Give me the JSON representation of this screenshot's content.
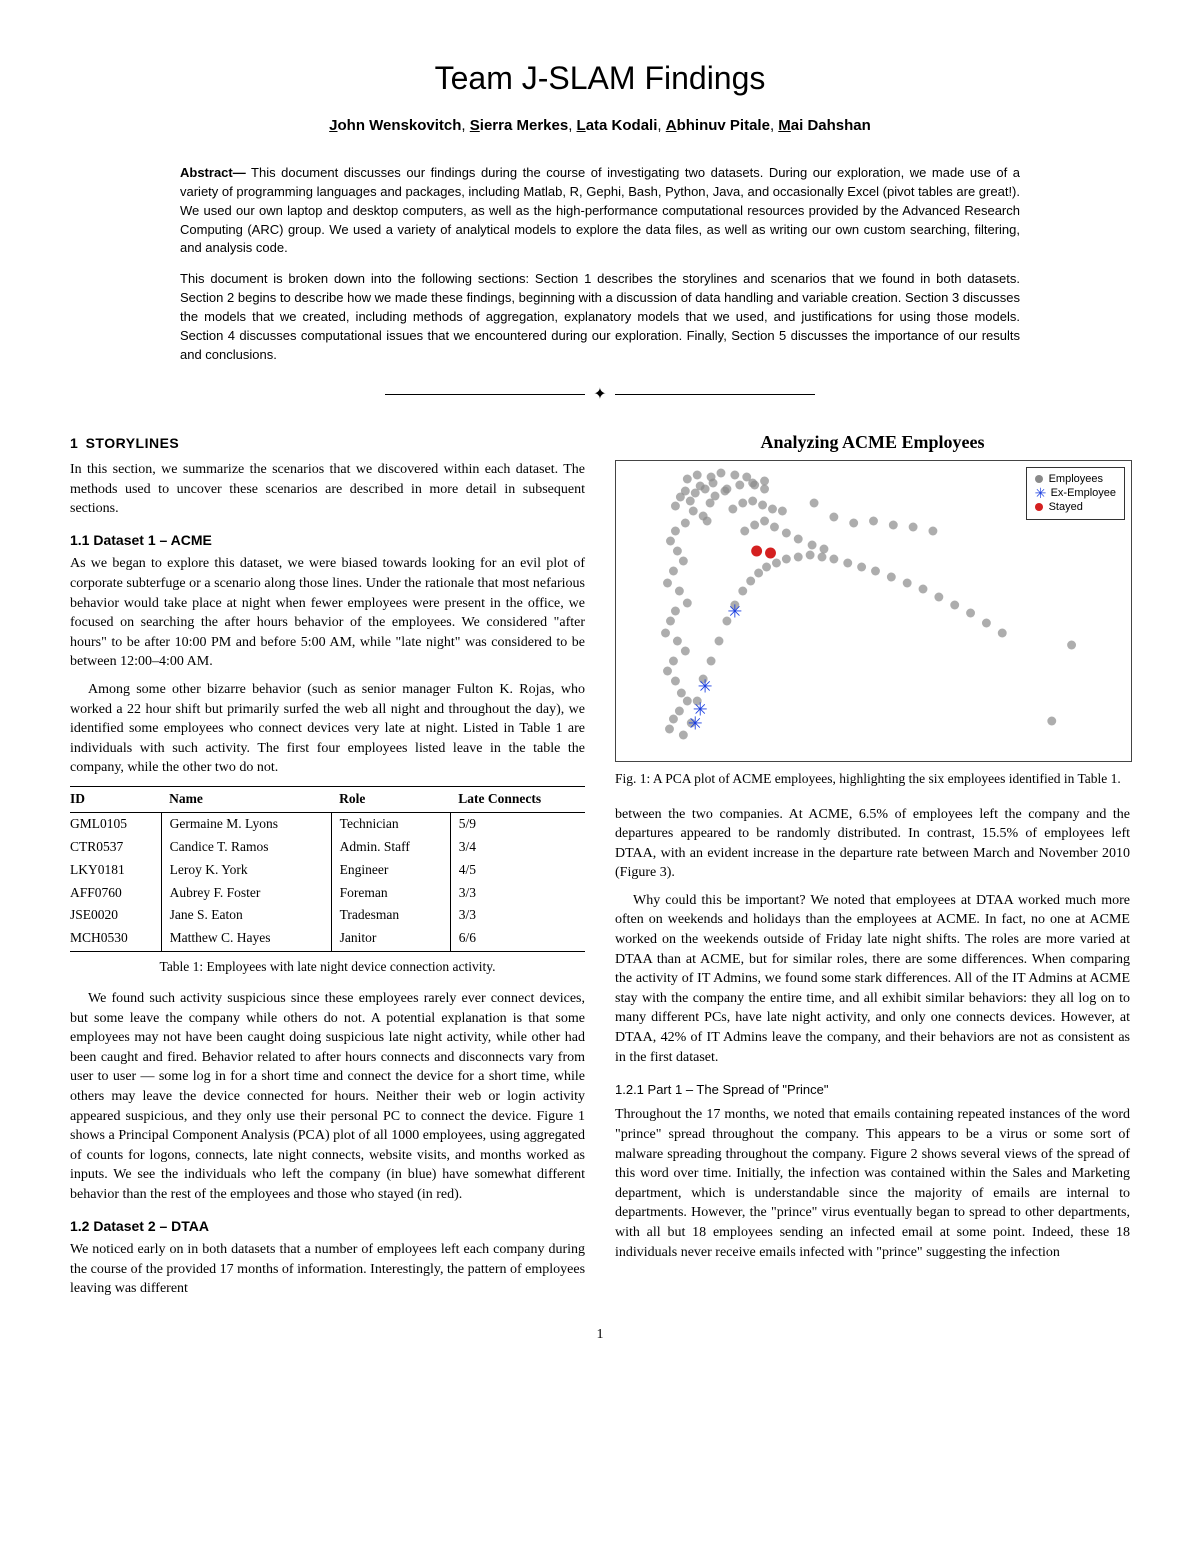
{
  "title": "Team J-SLAM Findings",
  "authors_html": "John Wenskovitch, Sierra Merkes, Lata Kodali, Abhinuv Pitale, Mai Dahshan",
  "authors": [
    {
      "initial": "J",
      "rest": "ohn Wenskovitch"
    },
    {
      "initial": "S",
      "rest": "ierra Merkes"
    },
    {
      "initial": "L",
      "rest": "ata Kodali"
    },
    {
      "initial": "A",
      "rest": "bhinuv Pitale"
    },
    {
      "initial": "M",
      "rest": "ai Dahshan"
    }
  ],
  "abstract_label": "Abstract—",
  "abstract_p1": " This document discusses our findings during the course of investigating two datasets. During our exploration, we made use of a variety of programming languages and packages, including Matlab, R, Gephi, Bash, Python, Java, and occasionally Excel (pivot tables are great!). We used our own laptop and desktop computers, as well as the high-performance computational resources provided by the Advanced Research Computing (ARC) group. We used a variety of analytical models to explore the data files, as well as writing our own custom searching, filtering, and analysis code.",
  "abstract_p2": "This document is broken down into the following sections: Section 1 describes the storylines and scenarios that we found in both datasets. Section 2 begins to describe how we made these findings, beginning with a discussion of data handling and variable creation. Section 3 discusses the models that we created, including methods of aggregation, explanatory models that we used, and justifications for using those models. Section 4 discusses computational issues that we encountered during our exploration. Finally, Section 5 discusses the importance of our results and conclusions.",
  "sec1_num": "1",
  "sec1_title": "STORYLINES",
  "sec1_intro": "In this section, we summarize the scenarios that we discovered within each dataset. The methods used to uncover these scenarios are described in more detail in subsequent sections.",
  "sec11_title": "1.1   Dataset 1 – ACME",
  "sec11_p1": "As we began to explore this dataset, we were biased towards looking for an evil plot of corporate subterfuge or a scenario along those lines. Under the rationale that most nefarious behavior would take place at night when fewer employees were present in the office, we focused on searching the after hours behavior of the employees. We considered \"after hours\" to be after 10:00 PM and before 5:00 AM, while \"late night\" was considered to be between 12:00–4:00 AM.",
  "sec11_p2": "Among some other bizarre behavior (such as senior manager Fulton K. Rojas, who worked a 22 hour shift but primarily surfed the web all night and throughout the day), we identified some employees who connect devices very late at night. Listed in Table 1 are individuals with such activity. The first four employees listed leave in the table the company, while the other two do not.",
  "table": {
    "headers": [
      "ID",
      "Name",
      "Role",
      "Late Connects"
    ],
    "rows": [
      [
        "GML0105",
        "Germaine M. Lyons",
        "Technician",
        "5/9"
      ],
      [
        "CTR0537",
        "Candice T. Ramos",
        "Admin. Staff",
        "3/4"
      ],
      [
        "LKY0181",
        "Leroy K. York",
        "Engineer",
        "4/5"
      ],
      [
        "AFF0760",
        "Aubrey F. Foster",
        "Foreman",
        "3/3"
      ],
      [
        "JSE0020",
        "Jane S. Eaton",
        "Tradesman",
        "3/3"
      ],
      [
        "MCH0530",
        "Matthew C. Hayes",
        "Janitor",
        "6/6"
      ]
    ],
    "caption": "Table 1: Employees with late night device connection activity."
  },
  "sec11_p3": "We found such activity suspicious since these employees rarely ever connect devices, but some leave the company while others do not. A potential explanation is that some employees may not have been caught doing suspicious late night activity, while other had been caught and fired. Behavior related to after hours connects and disconnects vary from user to user — some log in for a short time and connect the device for a short time, while others may leave the device connected for hours. Neither their web or login activity appeared suspicious, and they only use their personal PC to connect the device. Figure 1 shows a Principal Component Analysis (PCA) plot of all 1000 employees, using aggregated of counts for logons, connects, late night connects, website visits, and months worked as inputs. We see the individuals who left the company (in blue) have somewhat different behavior than the rest of the employees and those who stayed (in red).",
  "sec12_title": "1.2   Dataset 2 – DTAA",
  "sec12_p1": "We noticed early on in both datasets that a number of employees left each company during the course of the provided 17 months of information. Interestingly, the pattern of employees leaving was different",
  "fig1_title": "Analyzing ACME Employees",
  "fig1_caption": "Fig. 1: A PCA plot of ACME employees, highlighting the six employees identified in Table 1.",
  "legend": {
    "employees": "Employees",
    "ex": "Ex-Employee",
    "stayed": "Stayed"
  },
  "col2_p2": "between the two companies. At ACME, 6.5% of employees left the company and the departures appeared to be randomly distributed. In contrast, 15.5% of employees left DTAA, with an evident increase in the departure rate between March and November 2010 (Figure 3).",
  "col2_p3": "Why could this be important? We noted that employees at DTAA worked much more often on weekends and holidays than the employees at ACME. In fact, no one at ACME worked on the weekends outside of Friday late night shifts. The roles are more varied at DTAA than at ACME, but for similar roles, there are some differences. When comparing the activity of IT Admins, we found some stark differences. All of the IT Admins at ACME stay with the company the entire time, and all exhibit similar behaviors: they all log on to many different PCs, have late night activity, and only one connects devices. However, at DTAA, 42% of IT Admins leave the company, and their behaviors are not as consistent as in the first dataset.",
  "sec121_title": "1.2.1   Part 1 – The Spread of \"Prince\"",
  "sec121_p1": "Throughout the 17 months, we noted that emails containing repeated instances of the word \"prince\" spread throughout the company. This appears to be a virus or some sort of malware spreading throughout the company. Figure 2 shows several views of the spread of this word over time. Initially, the infection was contained within the Sales and Marketing department, which is understandable since the majority of emails are internal to departments. However, the \"prince\" virus eventually began to spread to other departments, with all but 18 employees sending an infected email at some point. Indeed, these 18 individuals never receive emails infected with \"prince\" suggesting the infection",
  "page_number": "1",
  "chart": {
    "type": "scatter",
    "background_color": "#ffffff",
    "border_color": "#444444",
    "xlim": [
      0,
      520
    ],
    "ylim": [
      0,
      300
    ],
    "colors": {
      "employees": "#8a8a8a",
      "ex_employee": "#1b3fe0",
      "stayed": "#d42020"
    },
    "marker_size_employees": 5,
    "marker_size_stayed": 7,
    "marker_size_ex": 14,
    "employees_points": [
      [
        70,
        30
      ],
      [
        80,
        32
      ],
      [
        75,
        40
      ],
      [
        90,
        28
      ],
      [
        100,
        35
      ],
      [
        110,
        30
      ],
      [
        60,
        45
      ],
      [
        65,
        36
      ],
      [
        85,
        25
      ],
      [
        95,
        42
      ],
      [
        78,
        50
      ],
      [
        88,
        55
      ],
      [
        92,
        60
      ],
      [
        70,
        62
      ],
      [
        60,
        70
      ],
      [
        55,
        80
      ],
      [
        62,
        90
      ],
      [
        68,
        100
      ],
      [
        58,
        110
      ],
      [
        52,
        122
      ],
      [
        64,
        130
      ],
      [
        72,
        142
      ],
      [
        60,
        150
      ],
      [
        55,
        160
      ],
      [
        50,
        172
      ],
      [
        62,
        180
      ],
      [
        70,
        190
      ],
      [
        58,
        200
      ],
      [
        52,
        210
      ],
      [
        60,
        220
      ],
      [
        66,
        232
      ],
      [
        72,
        240
      ],
      [
        64,
        250
      ],
      [
        58,
        258
      ],
      [
        54,
        268
      ],
      [
        68,
        274
      ],
      [
        76,
        262
      ],
      [
        82,
        240
      ],
      [
        88,
        218
      ],
      [
        96,
        200
      ],
      [
        104,
        180
      ],
      [
        112,
        160
      ],
      [
        120,
        144
      ],
      [
        128,
        130
      ],
      [
        136,
        120
      ],
      [
        144,
        112
      ],
      [
        152,
        106
      ],
      [
        162,
        102
      ],
      [
        172,
        98
      ],
      [
        184,
        96
      ],
      [
        196,
        94
      ],
      [
        208,
        96
      ],
      [
        220,
        98
      ],
      [
        234,
        102
      ],
      [
        248,
        106
      ],
      [
        262,
        110
      ],
      [
        278,
        116
      ],
      [
        294,
        122
      ],
      [
        310,
        128
      ],
      [
        326,
        136
      ],
      [
        342,
        144
      ],
      [
        358,
        152
      ],
      [
        374,
        162
      ],
      [
        390,
        172
      ],
      [
        130,
        70
      ],
      [
        140,
        64
      ],
      [
        150,
        60
      ],
      [
        160,
        66
      ],
      [
        172,
        72
      ],
      [
        184,
        78
      ],
      [
        198,
        84
      ],
      [
        210,
        88
      ],
      [
        118,
        48
      ],
      [
        128,
        42
      ],
      [
        138,
        40
      ],
      [
        148,
        44
      ],
      [
        158,
        48
      ],
      [
        168,
        50
      ],
      [
        112,
        28
      ],
      [
        125,
        24
      ],
      [
        138,
        22
      ],
      [
        150,
        20
      ],
      [
        320,
        70
      ],
      [
        140,
        24
      ],
      [
        260,
        60
      ],
      [
        280,
        64
      ],
      [
        300,
        66
      ],
      [
        440,
        260
      ],
      [
        150,
        28
      ],
      [
        98,
        22
      ],
      [
        460,
        184
      ],
      [
        220,
        56
      ],
      [
        240,
        62
      ],
      [
        72,
        18
      ],
      [
        82,
        14
      ],
      [
        96,
        16
      ],
      [
        106,
        12
      ],
      [
        120,
        14
      ],
      [
        132,
        16
      ],
      [
        200,
        42
      ]
    ],
    "ex_employee_points": [
      [
        120,
        150
      ],
      [
        90,
        225
      ],
      [
        85,
        248
      ],
      [
        80,
        262
      ]
    ],
    "stayed_points": [
      [
        142,
        90
      ],
      [
        156,
        92
      ]
    ]
  }
}
